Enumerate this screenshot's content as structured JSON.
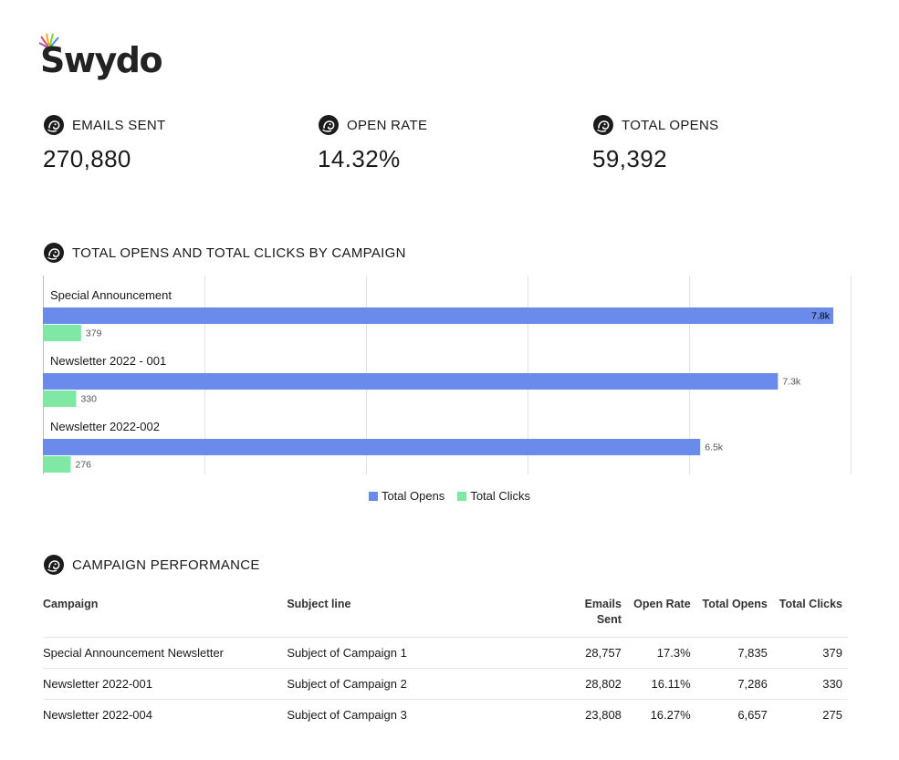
{
  "brand": {
    "logo_text": "Swydo"
  },
  "kpis": [
    {
      "label": "EMAILS SENT",
      "value": "270,880"
    },
    {
      "label": "OPEN RATE",
      "value": "14.32%"
    },
    {
      "label": "TOTAL OPENS",
      "value": "59,392"
    }
  ],
  "chart_section": {
    "title": "TOTAL OPENS AND TOTAL CLICKS BY CAMPAIGN"
  },
  "chart_data": {
    "type": "bar",
    "orientation": "horizontal",
    "categories": [
      "Special Announcement",
      "Newsletter 2022 - 001",
      "Newsletter 2022-002"
    ],
    "series": [
      {
        "name": "Total Opens",
        "values": [
          7835,
          7286,
          6516
        ],
        "labels": [
          "7.8k",
          "7.3k",
          "6.5k"
        ],
        "color": "#6b8bec"
      },
      {
        "name": "Total Clicks",
        "values": [
          379,
          330,
          276
        ],
        "labels": [
          "379",
          "330",
          "276"
        ],
        "color": "#7ee8a4"
      }
    ],
    "legend": "bottom",
    "grid": true
  },
  "table_section": {
    "title": "CAMPAIGN PERFORMANCE",
    "headers": [
      "Campaign",
      "Subject line",
      "Emails Sent",
      "Open Rate",
      "Total Opens",
      "Total Clicks"
    ],
    "rows": [
      [
        "Special Announcement Newsletter",
        "Subject of Campaign 1",
        "28,757",
        "17.3%",
        "7,835",
        "379"
      ],
      [
        "Newsletter 2022-001",
        "Subject of Campaign 2",
        "28,802",
        "16.11%",
        "7,286",
        "330"
      ],
      [
        "Newsletter 2022-004",
        "Subject of Campaign 3",
        "23,808",
        "16.27%",
        "6,657",
        "275"
      ]
    ]
  }
}
